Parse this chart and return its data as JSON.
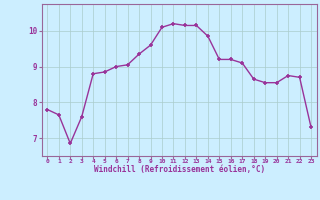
{
  "x": [
    0,
    1,
    2,
    3,
    4,
    5,
    6,
    7,
    8,
    9,
    10,
    11,
    12,
    13,
    14,
    15,
    16,
    17,
    18,
    19,
    20,
    21,
    22,
    23
  ],
  "y": [
    7.8,
    7.65,
    6.85,
    7.6,
    8.8,
    8.85,
    9.0,
    9.05,
    9.35,
    9.6,
    10.1,
    10.2,
    10.15,
    10.15,
    9.85,
    9.2,
    9.2,
    9.1,
    8.65,
    8.55,
    8.55,
    8.75,
    8.7,
    7.3
  ],
  "line_color": "#993399",
  "marker": "+",
  "marker_color": "#993399",
  "bg_color": "#cceeff",
  "grid_color": "#aacccc",
  "xlabel": "Windchill (Refroidissement éolien,°C)",
  "xlabel_color": "#993399",
  "tick_color": "#993399",
  "ylim": [
    6.5,
    10.75
  ],
  "xlim": [
    -0.5,
    23.5
  ],
  "yticks": [
    7,
    8,
    9,
    10
  ],
  "xticks": [
    0,
    1,
    2,
    3,
    4,
    5,
    6,
    7,
    8,
    9,
    10,
    11,
    12,
    13,
    14,
    15,
    16,
    17,
    18,
    19,
    20,
    21,
    22,
    23
  ],
  "xtick_labels": [
    "0",
    "1",
    "2",
    "3",
    "4",
    "5",
    "6",
    "7",
    "8",
    "9",
    "10",
    "11",
    "12",
    "13",
    "14",
    "15",
    "16",
    "17",
    "18",
    "19",
    "20",
    "21",
    "22",
    "23"
  ],
  "linewidth": 1.0,
  "markersize": 3.5,
  "spine_color": "#996699",
  "axis_bg": "#cceeff"
}
